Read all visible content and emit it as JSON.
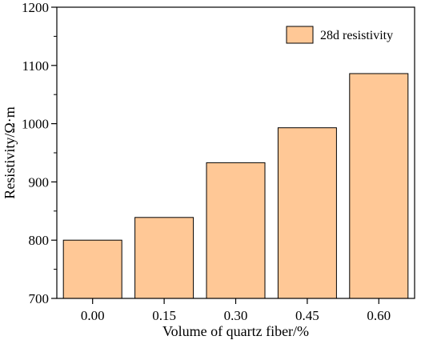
{
  "colors": {
    "bar_fill": "#FFC896",
    "bar_stroke": "#000000",
    "axis": "#000000",
    "background": "#FFFFFF"
  },
  "chart_data": {
    "type": "bar",
    "categories": [
      "0.00",
      "0.15",
      "0.30",
      "0.45",
      "0.60"
    ],
    "series": [
      {
        "name": "28d resistivity",
        "values": [
          800,
          839,
          933,
          993,
          1086
        ]
      }
    ],
    "xlabel": "Volume of quartz fiber/%",
    "ylabel": "Resistivity/Ω·m",
    "ylim": [
      700,
      1200
    ],
    "yticks": [
      "700",
      "800",
      "900",
      "1000",
      "1100",
      "1200"
    ],
    "grid": false,
    "legend_position": "top-right"
  }
}
